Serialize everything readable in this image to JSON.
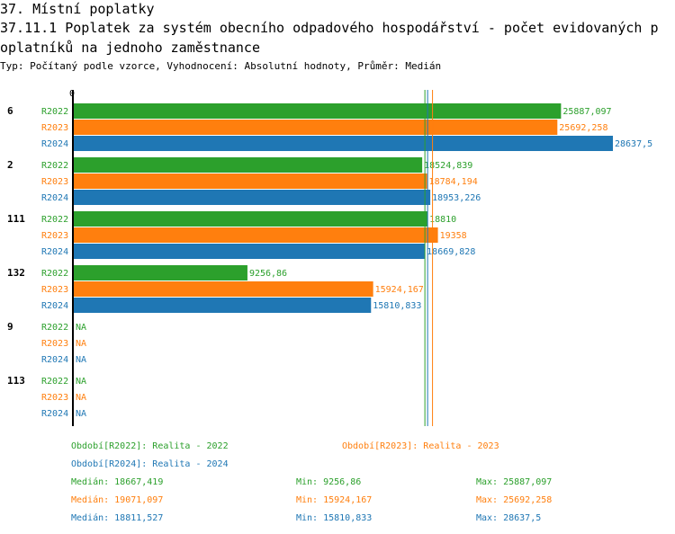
{
  "heading": "37. Místní poplatky",
  "title_lines": [
    "37.11.1 Poplatek za systém obecního odpadového hospodářství - počet evidovaných p",
    "oplatníků na jednoho zaměstnance"
  ],
  "subtitle": "Typ: Počítaný podle vzorce, Vyhodnocení: Absolutní hodnoty, Průměr: Medián",
  "colors": {
    "R2022": "#2ca02c",
    "R2023": "#ff7f0e",
    "R2024": "#1f77b4"
  },
  "chart_data": {
    "type": "bar",
    "orientation": "horizontal",
    "x_tick_label": "0",
    "series_names": [
      "R2022",
      "R2023",
      "R2024"
    ],
    "categories": [
      "6",
      "2",
      "111",
      "132",
      "9",
      "113"
    ],
    "groups": [
      {
        "label": "6",
        "values": [
          25887.097,
          25692.258,
          28637.5
        ],
        "labels": [
          "25887,097",
          "25692,258",
          "28637,5"
        ]
      },
      {
        "label": "2",
        "values": [
          18524.839,
          18784.194,
          18953.226
        ],
        "labels": [
          "18524,839",
          "18784,194",
          "18953,226"
        ]
      },
      {
        "label": "111",
        "values": [
          18810,
          19358,
          18669.828
        ],
        "labels": [
          "18810",
          "19358",
          "18669,828"
        ]
      },
      {
        "label": "132",
        "values": [
          9256.86,
          15924.167,
          15810.833
        ],
        "labels": [
          "9256,86",
          "15924,167",
          "15810,833"
        ]
      },
      {
        "label": "9",
        "values": [
          null,
          null,
          null
        ],
        "labels": [
          "NA",
          "NA",
          "NA"
        ]
      },
      {
        "label": "113",
        "values": [
          null,
          null,
          null
        ],
        "labels": [
          "NA",
          "NA",
          "NA"
        ]
      }
    ],
    "median_lines": [
      18667.419,
      19071.097,
      18811.527
    ],
    "xlim": [
      0,
      28637.5
    ]
  },
  "legend": [
    {
      "series": "R2022",
      "text": "Období[R2022]: Realita - 2022"
    },
    {
      "series": "R2023",
      "text": "Období[R2023]: Realita - 2023"
    },
    {
      "series": "R2024",
      "text": "Období[R2024]: Realita - 2024"
    }
  ],
  "stats": [
    {
      "series": "R2022",
      "median": "Medián: 18667,419",
      "min": "Min: 9256,86",
      "max": "Max: 25887,097"
    },
    {
      "series": "R2023",
      "median": "Medián: 19071,097",
      "min": "Min: 15924,167",
      "max": "Max: 25692,258"
    },
    {
      "series": "R2024",
      "median": "Medián: 18811,527",
      "min": "Min: 15810,833",
      "max": "Max: 28637,5"
    }
  ]
}
